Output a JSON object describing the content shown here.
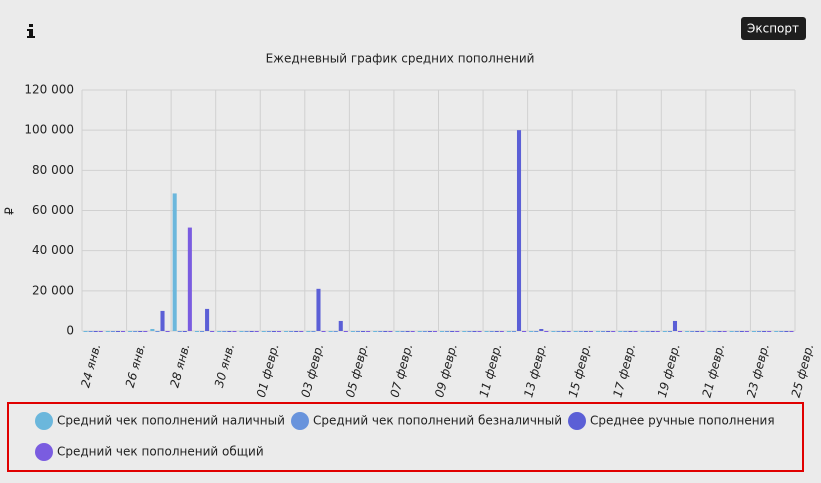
{
  "chart_data": {
    "type": "bar",
    "title": "Ежедневный график средних пополнений",
    "export_button": "Экспорт",
    "y_label": "₽",
    "categories": [
      "24 янв.",
      null,
      "26 янв.",
      null,
      "28 янв.",
      null,
      "30 янв.",
      null,
      "01 февр.",
      null,
      "03 февр.",
      null,
      "05 февр.",
      null,
      "07 февр.",
      null,
      "09 февр.",
      null,
      "11 февр.",
      null,
      "13 февр.",
      null,
      "15 февр.",
      null,
      "17 февр.",
      null,
      "19 февр.",
      null,
      "21 февр.",
      null,
      "23 февр.",
      null,
      "25 февр."
    ],
    "series": [
      {
        "name": "Средний чек пополнений наличный",
        "color": "#6bb7dc",
        "values": [
          0,
          0,
          0,
          1000,
          68500,
          0,
          0,
          0,
          0,
          0,
          0,
          0,
          0,
          0,
          0,
          0,
          0,
          0,
          0,
          0,
          0,
          0,
          0,
          0,
          0,
          0,
          0,
          0,
          0,
          0,
          0,
          0,
          null
        ]
      },
      {
        "name": "Средний чек пополнений безналичный",
        "color": "#6893dc",
        "values": [
          0,
          0,
          0,
          0,
          0,
          0,
          0,
          0,
          0,
          0,
          0,
          0,
          0,
          0,
          0,
          0,
          0,
          0,
          0,
          0,
          0,
          0,
          0,
          0,
          0,
          0,
          0,
          0,
          0,
          0,
          0,
          0,
          null
        ]
      },
      {
        "name": "Среднее ручные пополнения",
        "color": "#5b5fd6",
        "values": [
          0,
          0,
          0,
          10000,
          0,
          11000,
          0,
          0,
          0,
          0,
          21000,
          5000,
          0,
          0,
          0,
          0,
          0,
          0,
          0,
          100000,
          1000,
          0,
          0,
          0,
          0,
          0,
          5000,
          0,
          0,
          0,
          0,
          0,
          null
        ]
      },
      {
        "name": "Средний чек пополнений общий",
        "color": "#7a5ce0",
        "values": [
          0,
          0,
          0,
          0,
          51500,
          0,
          0,
          0,
          0,
          0,
          0,
          0,
          0,
          0,
          0,
          0,
          0,
          0,
          0,
          0,
          0,
          0,
          0,
          0,
          0,
          0,
          0,
          0,
          0,
          0,
          0,
          0,
          null
        ]
      }
    ],
    "ylim": [
      0,
      120000
    ],
    "yticks": [
      0,
      {
        "value": 20000,
        "label": "20 000"
      },
      {
        "value": 40000,
        "label": "40 000"
      },
      {
        "value": 60000,
        "label": "60 000"
      },
      {
        "value": 80000,
        "label": "80 000"
      },
      {
        "value": 100000,
        "label": "100 000"
      },
      {
        "value": 120000,
        "label": "120 000"
      }
    ],
    "grid": true
  }
}
